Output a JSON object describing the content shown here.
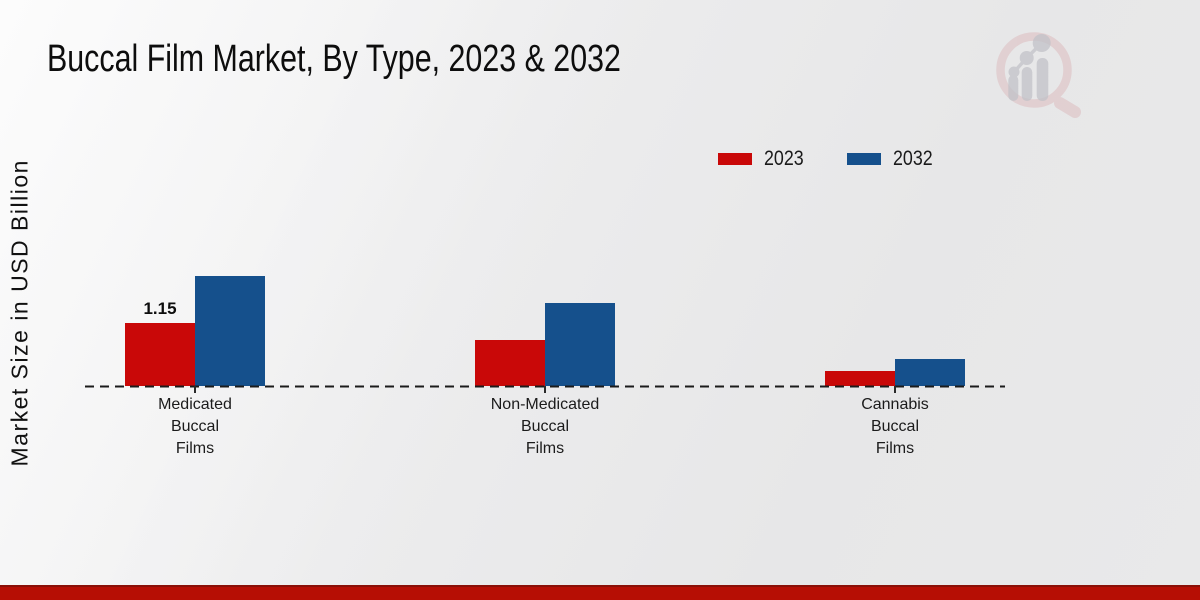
{
  "page": {
    "footer_accent_color": "#b60e04",
    "background_color": "#e9e9ea"
  },
  "chart_data": {
    "type": "bar",
    "title": "Buccal Film Market, By Type, 2023 & 2032",
    "ylabel": "Market Size in USD Billion",
    "xlabel": "",
    "categories": [
      "Medicated Buccal Films",
      "Non-Medicated Buccal Films",
      "Cannabis Buccal Films"
    ],
    "series": [
      {
        "name": "2023",
        "color": "#c90808",
        "values": [
          1.15,
          0.84,
          0.28
        ]
      },
      {
        "name": "2032",
        "color": "#15508c",
        "values": [
          2.01,
          1.51,
          0.49
        ]
      }
    ],
    "annotations": [
      {
        "series": "2023",
        "category_index": 0,
        "text": "1.15"
      }
    ],
    "ylim": [
      0,
      2.4
    ],
    "grid": false,
    "legend_position": "top-right",
    "baseline_style": "dashed",
    "axis_color": "#1b1b1b"
  },
  "logo": {
    "name": "magnifier-bar-chart-watermark",
    "ring_color": "#dcb9bb",
    "bars_color": "#c2c2c8"
  }
}
